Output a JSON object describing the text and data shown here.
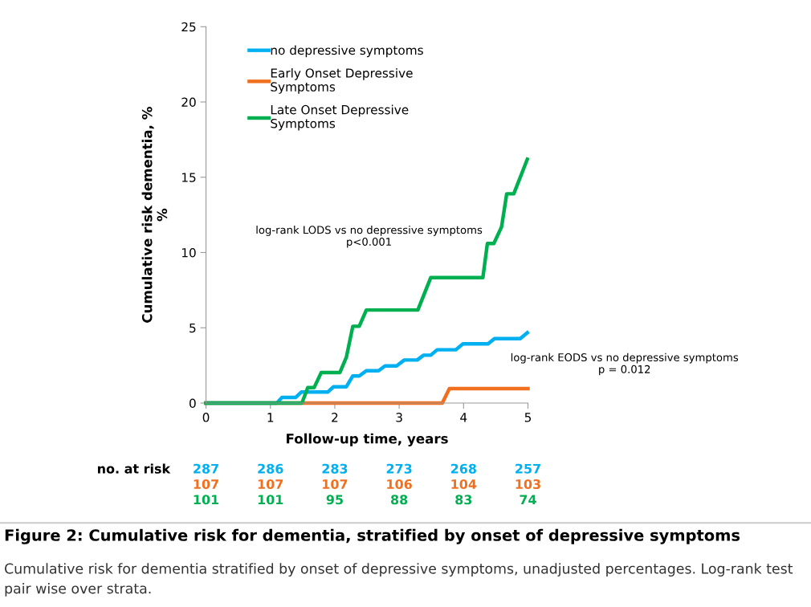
{
  "chart_data": {
    "type": "step",
    "title": "Figure 2: Cumulative risk for dementia, stratified by onset of depressive symptoms",
    "xlabel": "Follow-up time, years",
    "ylabel": "Cumulative risk dementia, %\n%",
    "xlim": [
      0,
      5
    ],
    "xticks": [
      0,
      1,
      2,
      3,
      4,
      5
    ],
    "ylim": [
      0,
      25
    ],
    "yticks": [
      0,
      5,
      10,
      15,
      20,
      25
    ],
    "grid": false,
    "legend": "top left",
    "line_style": "solid",
    "marker": "none",
    "series": [
      {
        "name": "no depressive symptoms",
        "color": "#00b0f0",
        "x": [
          0,
          1.1,
          1.18,
          1.39,
          1.48,
          1.89,
          1.98,
          2.18,
          2.28,
          2.38,
          2.49,
          2.68,
          2.78,
          2.96,
          3.08,
          3.28,
          3.38,
          3.49,
          3.59,
          3.88,
          3.99,
          4.38,
          4.48,
          4.88,
          4.99
        ],
        "values": [
          0,
          0,
          0.37,
          0.37,
          0.73,
          0.73,
          1.08,
          1.08,
          1.8,
          1.8,
          2.15,
          2.15,
          2.47,
          2.47,
          2.86,
          2.86,
          3.18,
          3.18,
          3.54,
          3.54,
          3.93,
          3.93,
          4.28,
          4.28,
          4.67
        ]
      },
      {
        "name": "Early Onset Depressive Symptoms",
        "color": "#f07020",
        "x": [
          0,
          3.67,
          3.78,
          5.0
        ],
        "values": [
          0,
          0,
          0.96,
          0.96
        ]
      },
      {
        "name": "Late Onset Depressive Symptoms",
        "color": "#00b050",
        "x": [
          0,
          1.49,
          1.58,
          1.68,
          1.79,
          2.08,
          2.18,
          2.28,
          2.38,
          2.49,
          3.29,
          3.49,
          4.3,
          4.37,
          4.47,
          4.59,
          4.67,
          4.78,
          4.99
        ],
        "values": [
          0,
          0,
          1.03,
          1.03,
          2.03,
          2.03,
          3.04,
          5.1,
          5.1,
          6.18,
          6.18,
          8.33,
          8.33,
          10.6,
          10.6,
          11.7,
          13.9,
          13.9,
          16.2
        ]
      }
    ],
    "annotations": [
      "log-rank LODS vs no depressive symptoms\np<0.001",
      "log-rank EODS vs no depressive symptoms\np = 0.012",
      "no. at risk",
      "287",
      "286",
      "283",
      "273",
      "268",
      "257",
      "107",
      "107",
      "107",
      "106",
      "104",
      "103",
      "101",
      "101",
      "95",
      "88",
      "83",
      "74",
      "Cumulative risk for dementia stratified by onset of depressive symptoms, unadjusted percentages. Log-rank test pair wise over strata."
    ]
  }
}
